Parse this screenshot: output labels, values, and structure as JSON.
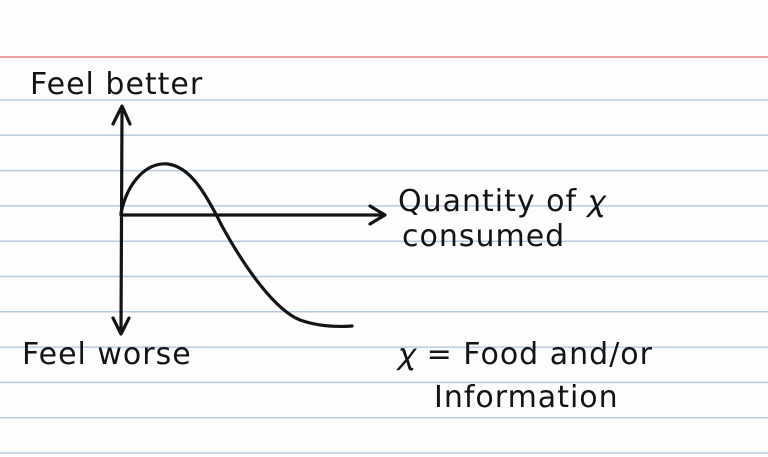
{
  "diagram": {
    "y_positive_label": "Feel better",
    "y_negative_label": "Feel worse",
    "x_label_line1": "Quantity of 𝜒",
    "x_label_line2": "consumed",
    "note_line1": "𝜒 = Food and/or",
    "note_line2": "Information"
  },
  "colors": {
    "ink": "#141414",
    "rule_blue": "#b9cbe0",
    "margin_red": "#e9a0a0",
    "paper": "#fdfdfd"
  }
}
